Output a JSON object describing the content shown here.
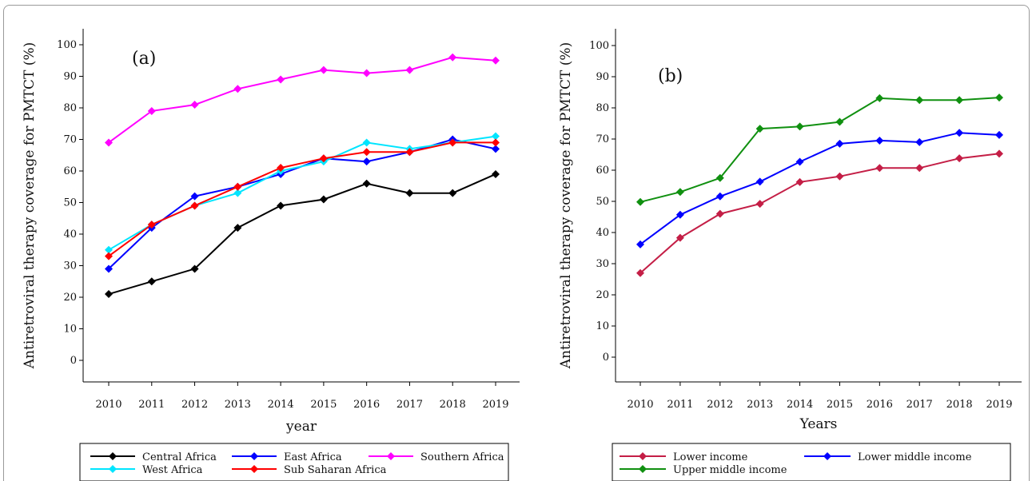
{
  "chart_data": [
    {
      "type": "line",
      "panel_label": "(a)",
      "xlabel": "year",
      "ylabel": "Antiretroviral therapy coverage for PMTCT (%)",
      "x": [
        2010,
        2011,
        2012,
        2013,
        2014,
        2015,
        2016,
        2017,
        2018,
        2019
      ],
      "ylim": [
        0,
        100
      ],
      "yticks": [
        0,
        10,
        20,
        30,
        40,
        50,
        60,
        70,
        80,
        90,
        100
      ],
      "grid": false,
      "legend": "bottom",
      "series": [
        {
          "name": "Central Africa",
          "color": "#000000",
          "values": [
            21,
            25,
            29,
            42,
            49,
            51,
            56,
            53,
            53,
            59
          ]
        },
        {
          "name": "East Africa",
          "color": "#0000ff",
          "values": [
            29,
            42,
            52,
            55,
            59,
            64,
            63,
            66,
            70,
            67
          ]
        },
        {
          "name": "Southern Africa",
          "color": "#ff00ff",
          "values": [
            69,
            79,
            81,
            86,
            89,
            92,
            91,
            92,
            96,
            95
          ]
        },
        {
          "name": "West Africa",
          "color": "#00e5ff",
          "values": [
            35,
            43,
            49,
            53,
            60,
            63,
            69,
            67,
            69,
            71
          ]
        },
        {
          "name": "Sub Saharan Africa",
          "color": "#ff0000",
          "values": [
            33,
            43,
            49,
            55,
            61,
            64,
            66,
            66,
            69,
            69
          ]
        }
      ]
    },
    {
      "type": "line",
      "panel_label": "(b)",
      "xlabel": "Years",
      "ylabel": "Antiretroviral therapy coverage for PMTCT (%)",
      "x": [
        2010,
        2011,
        2012,
        2013,
        2014,
        2015,
        2016,
        2017,
        2018,
        2019
      ],
      "ylim": [
        0,
        100
      ],
      "yticks": [
        0,
        10,
        20,
        30,
        40,
        50,
        60,
        70,
        80,
        90,
        100
      ],
      "grid": false,
      "legend": "bottom",
      "series": [
        {
          "name": "Lower income",
          "color": "#c41e46",
          "values": [
            27,
            38.3,
            46,
            49.2,
            56.2,
            58,
            60.7,
            60.7,
            63.8,
            65.3
          ]
        },
        {
          "name": "Lower middle income",
          "color": "#0000ff",
          "values": [
            36.2,
            45.7,
            51.6,
            56.3,
            62.7,
            68.5,
            69.5,
            69,
            72,
            71.3
          ]
        },
        {
          "name": "Upper middle income",
          "color": "#109010",
          "values": [
            49.8,
            53,
            57.5,
            73.3,
            74,
            75.5,
            83.1,
            82.5,
            82.5,
            83.3
          ]
        }
      ]
    }
  ]
}
